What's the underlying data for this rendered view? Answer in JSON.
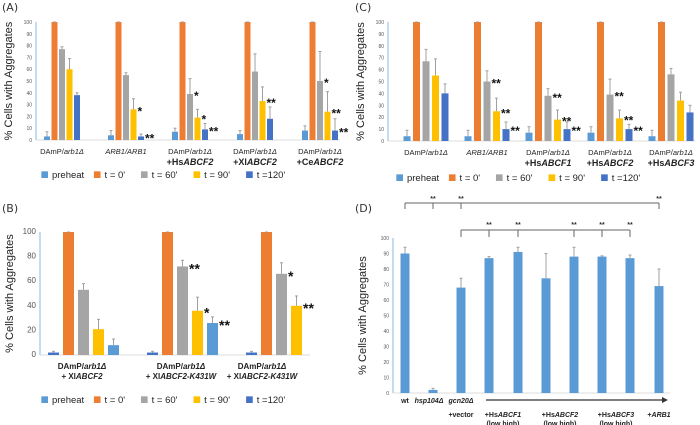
{
  "colors": {
    "preheat": "#5B9BD5",
    "t0": "#ED7D31",
    "t60": "#A5A5A5",
    "t90": "#FFC000",
    "t120": "#4472C4",
    "axis": "#9DC3E6",
    "bracket": "#666666",
    "errbar": "#A0A0A0"
  },
  "chart_data": [
    {
      "panel": "(A)",
      "type": "bar",
      "ylabel": "% Cells with Aggregates",
      "ylim": [
        0,
        100
      ],
      "yticks": [
        0,
        10,
        20,
        30,
        40,
        50,
        60,
        70,
        80,
        90,
        100
      ],
      "legend": [
        "preheat",
        "t = 0'",
        "t = 60'",
        "t = 90'",
        "t =120'"
      ],
      "legend_position": "bottom",
      "categories": [
        [
          "DAmP/arb1Δ"
        ],
        [
          "ARB1/ARB1"
        ],
        [
          "DAmP/arb1Δ",
          "+HsABCF2"
        ],
        [
          "DAmP/arb1Δ",
          "+XlABCF2"
        ],
        [
          "DAmP/arb1Δ",
          "+CeABCF2"
        ]
      ],
      "series": [
        {
          "name": "preheat",
          "color_key": "preheat",
          "values": [
            3,
            4,
            7,
            5,
            8
          ],
          "errors": [
            4,
            4,
            3,
            3,
            4
          ],
          "sig": [
            "",
            "",
            "",
            "",
            ""
          ]
        },
        {
          "name": "t = 0'",
          "color_key": "t0",
          "values": [
            100,
            100,
            100,
            100,
            100
          ],
          "errors": [
            0,
            0,
            0,
            0,
            0
          ],
          "sig": [
            "",
            "",
            "",
            "",
            ""
          ]
        },
        {
          "name": "t = 60'",
          "color_key": "t60",
          "values": [
            77,
            55,
            39,
            58,
            50
          ],
          "errors": [
            2,
            2,
            13,
            15,
            25
          ],
          "sig": [
            "",
            "",
            "*",
            "",
            "*"
          ]
        },
        {
          "name": "t = 90'",
          "color_key": "t90",
          "values": [
            60,
            26,
            19,
            33,
            24
          ],
          "errors": [
            9,
            9,
            7,
            12,
            17
          ],
          "sig": [
            "",
            "*",
            "*",
            "**",
            "**"
          ]
        },
        {
          "name": "t =120'",
          "color_key": "t120",
          "values": [
            38,
            3,
            9,
            18,
            8
          ],
          "errors": [
            2,
            2,
            5,
            10,
            10
          ],
          "sig": [
            "",
            "**",
            "**",
            "",
            "**"
          ]
        }
      ]
    },
    {
      "panel": "(C)",
      "type": "bar",
      "ylabel": "% Cells with Aggregates",
      "ylim": [
        0,
        100
      ],
      "yticks": [
        0,
        10,
        20,
        30,
        40,
        50,
        60,
        70,
        80,
        90,
        100
      ],
      "legend": [
        "preheat",
        "t = 0'",
        "t = 60'",
        "t = 90'",
        "t =120'"
      ],
      "legend_position": "bottom",
      "categories": [
        [
          "DAmP/arb1Δ"
        ],
        [
          "ARB1/ARB1"
        ],
        [
          "DAmP/arb1Δ",
          "+HsABCF1"
        ],
        [
          "DAmP/arb1Δ",
          "+HsABCF2"
        ],
        [
          "DAmP/arb1Δ",
          "+HsABCF3"
        ]
      ],
      "series": [
        {
          "name": "preheat",
          "color_key": "preheat",
          "values": [
            4,
            4,
            7,
            7,
            4
          ],
          "errors": [
            5,
            5,
            5,
            5,
            5
          ],
          "sig": [
            "",
            "",
            "",
            "",
            ""
          ]
        },
        {
          "name": "t = 0'",
          "color_key": "t0",
          "values": [
            100,
            100,
            100,
            100,
            100
          ],
          "errors": [
            0,
            0,
            0,
            0,
            0
          ],
          "sig": [
            "",
            "",
            "",
            "",
            ""
          ]
        },
        {
          "name": "t = 60'",
          "color_key": "t60",
          "values": [
            67,
            50,
            38,
            39,
            56
          ],
          "errors": [
            10,
            9,
            6,
            13,
            5
          ],
          "sig": [
            "",
            "**",
            "**",
            "**",
            ""
          ]
        },
        {
          "name": "t = 90'",
          "color_key": "t90",
          "values": [
            55,
            25,
            18,
            19,
            34
          ],
          "errors": [
            14,
            11,
            8,
            7,
            7
          ],
          "sig": [
            "",
            "**",
            "**",
            "**",
            ""
          ]
        },
        {
          "name": "t =120'",
          "color_key": "t120",
          "values": [
            40,
            10,
            10,
            10,
            24
          ],
          "errors": [
            8,
            6,
            6,
            4,
            6
          ],
          "sig": [
            "",
            "**",
            "**",
            "**",
            ""
          ]
        }
      ]
    },
    {
      "panel": "(B)",
      "type": "bar",
      "ylabel": "% Cells with Aggregates",
      "ylim": [
        0,
        100
      ],
      "yticks": [
        0,
        20,
        40,
        60,
        80,
        100
      ],
      "legend": [
        "preheat",
        "t = 0'",
        "t = 60'",
        "t = 90'",
        "t =120'"
      ],
      "legend_position": "bottom",
      "categories": [
        [
          "DAmP/arb1Δ",
          "+ XlABCF2"
        ],
        [
          "DAmP/arb1Δ",
          "+ XlABCF2-K431W"
        ],
        [
          "DAmP/arb1Δ",
          "+ XlABCF2-K431W"
        ]
      ],
      "bars": [
        [
          {
            "color_key": "t120",
            "value": 2,
            "error": 1,
            "sig": ""
          },
          {
            "color_key": "t0",
            "value": 100,
            "error": 0,
            "sig": ""
          },
          {
            "color_key": "t60",
            "value": 53,
            "error": 5,
            "sig": ""
          },
          {
            "color_key": "t90",
            "value": 21,
            "error": 8,
            "sig": ""
          },
          {
            "color_key": "preheat",
            "value": 8,
            "error": 5,
            "sig": ""
          }
        ],
        [
          {
            "color_key": "t120",
            "value": 2,
            "error": 1,
            "sig": ""
          },
          {
            "color_key": "t0",
            "value": 100,
            "error": 0,
            "sig": ""
          },
          {
            "color_key": "t60",
            "value": 72,
            "error": 5,
            "sig": "**"
          },
          {
            "color_key": "t90",
            "value": 36,
            "error": 11,
            "sig": "*"
          },
          {
            "color_key": "preheat",
            "value": 26,
            "error": 5,
            "sig": "**"
          }
        ],
        [
          {
            "color_key": "t120",
            "value": 2,
            "error": 1,
            "sig": ""
          },
          {
            "color_key": "t0",
            "value": 100,
            "error": 0,
            "sig": ""
          },
          {
            "color_key": "t60",
            "value": 66,
            "error": 9,
            "sig": "*"
          },
          {
            "color_key": "t90",
            "value": 40,
            "error": 8,
            "sig": "**"
          }
        ]
      ]
    },
    {
      "panel": "(D)",
      "type": "bar",
      "ylabel": "% Cells with Aggregates",
      "ylim": [
        0,
        100
      ],
      "yticks": [
        0,
        10,
        20,
        30,
        40,
        50,
        60,
        70,
        80,
        90,
        100
      ],
      "color_key": "preheat",
      "categories": [
        "wt",
        "hsp104Δ",
        "gcn20Δ",
        "HsABCF1 low",
        "HsABCF1 high",
        "HsABCF2 low",
        "HsABCF2 high",
        "HsABCF3 low",
        "HsABCF3 high",
        "ARB1"
      ],
      "values": [
        90,
        2,
        68,
        87,
        91,
        74,
        88,
        88,
        87,
        69
      ],
      "errors": [
        4,
        1,
        6,
        1,
        3,
        16,
        6,
        0.5,
        2,
        11
      ],
      "xlabels": {
        "wt": "wt",
        "hsp104": "hsp104Δ",
        "gcn20": "gcn20Δ",
        "vector": "+vector",
        "groups": [
          {
            "prefix": "+Hs",
            "gene": "ABCF1",
            "sub": "(low      high)"
          },
          {
            "prefix": "+Hs",
            "gene": "ABCF2",
            "sub": "(low      high)"
          },
          {
            "prefix": "+Hs",
            "gene": "ABCF3",
            "sub": "(low      high)"
          },
          {
            "prefix": "+",
            "gene": "ARB1",
            "sub": ""
          }
        ]
      },
      "top_brackets": {
        "bracket1": {
          "from": 0,
          "drops": [
            1,
            2,
            9
          ],
          "stars": [
            "**",
            "**",
            "**"
          ]
        },
        "bracket2": {
          "from": 2,
          "drops": [
            3,
            4,
            6,
            7,
            8
          ],
          "stars": [
            "**",
            "**",
            "**",
            "**",
            "**"
          ]
        }
      }
    }
  ]
}
